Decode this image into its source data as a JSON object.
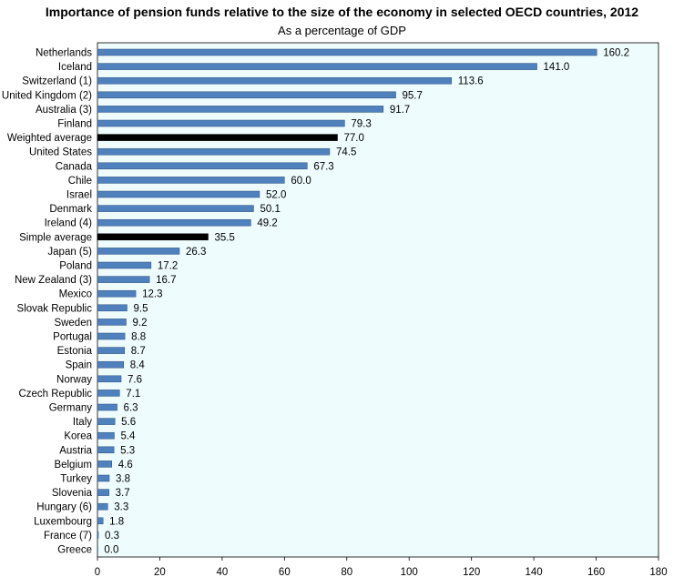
{
  "chart_data": {
    "type": "bar",
    "orientation": "horizontal",
    "title": "Importance of pension funds relative to the size of the economy in selected OECD countries, 2012",
    "subtitle": "As a percentage of GDP",
    "xlim": [
      0,
      180
    ],
    "xticks": [
      0,
      20,
      40,
      60,
      80,
      100,
      120,
      140,
      160,
      180
    ],
    "grid": false,
    "colors": {
      "bar": "#4f81bd",
      "highlight": "#000000",
      "plot_bg": "#eefcfd"
    },
    "categories": [
      "Netherlands",
      "Iceland",
      "Switzerland (1)",
      "United Kingdom (2)",
      "Australia (3)",
      "Finland",
      "Weighted average",
      "United States",
      "Canada",
      "Chile",
      "Israel",
      "Denmark",
      "Ireland (4)",
      "Simple average",
      "Japan (5)",
      "Poland",
      "New Zealand (3)",
      "Mexico",
      "Slovak Republic",
      "Sweden",
      "Portugal",
      "Estonia",
      "Spain",
      "Norway",
      "Czech Republic",
      "Germany",
      "Italy",
      "Korea",
      "Austria",
      "Belgium",
      "Turkey",
      "Slovenia",
      "Hungary (6)",
      "Luxembourg",
      "France (7)",
      "Greece"
    ],
    "values": [
      160.2,
      141.0,
      113.6,
      95.7,
      91.7,
      79.3,
      77.0,
      74.5,
      67.3,
      60.0,
      52.0,
      50.1,
      49.2,
      35.5,
      26.3,
      17.2,
      16.7,
      12.3,
      9.5,
      9.2,
      8.8,
      8.7,
      8.4,
      7.6,
      7.1,
      6.3,
      5.6,
      5.4,
      5.3,
      4.6,
      3.8,
      3.7,
      3.3,
      1.8,
      0.3,
      0.0
    ],
    "labels": [
      "160.2",
      "141.0",
      "113.6",
      "95.7",
      "91.7",
      "79.3",
      "77.0",
      "74.5",
      "67.3",
      "60.0",
      "52.0",
      "50.1",
      "49.2",
      "35.5",
      "26.3",
      "17.2",
      "16.7",
      "12.3",
      "9.5",
      "9.2",
      "8.8",
      "8.7",
      "8.4",
      "7.6",
      "7.1",
      "6.3",
      "5.6",
      "5.4",
      "5.3",
      "4.6",
      "3.8",
      "3.7",
      "3.3",
      "1.8",
      "0.3",
      "0.0"
    ],
    "highlighted": [
      "Weighted average",
      "Simple average"
    ]
  }
}
